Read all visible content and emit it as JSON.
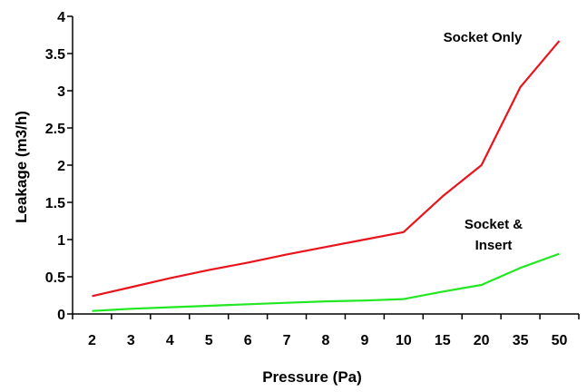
{
  "chart_data": {
    "type": "line",
    "categories": [
      "2",
      "3",
      "4",
      "5",
      "6",
      "7",
      "8",
      "9",
      "10",
      "15",
      "20",
      "35",
      "50"
    ],
    "series": [
      {
        "name": "Socket Only",
        "color": "#e8141c",
        "values": [
          0.24,
          0.36,
          0.48,
          0.59,
          0.69,
          0.8,
          0.9,
          1.0,
          1.1,
          1.58,
          2.0,
          3.05,
          3.67
        ]
      },
      {
        "name": "Socket & Insert",
        "color": "#22e822",
        "values": [
          0.04,
          0.07,
          0.09,
          0.11,
          0.13,
          0.15,
          0.17,
          0.18,
          0.2,
          0.3,
          0.39,
          0.62,
          0.81
        ]
      }
    ],
    "xlabel": "Pressure (Pa)",
    "ylabel": "Leakage  (m3/h)",
    "ylim": [
      0,
      4
    ],
    "y_ticks": [
      "0",
      "0.5",
      "1",
      "1.5",
      "2",
      "2.5",
      "3",
      "3.5",
      "4"
    ],
    "grid": false,
    "annotations": [
      {
        "lines": [
          "Socket Only"
        ],
        "series": "Socket Only"
      },
      {
        "lines": [
          "Socket &",
          "Insert"
        ],
        "series": "Socket & Insert"
      }
    ]
  }
}
